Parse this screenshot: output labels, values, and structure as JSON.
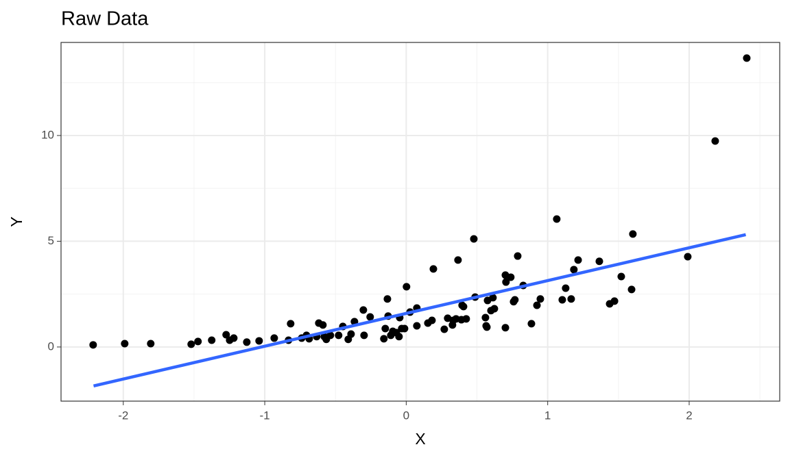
{
  "chart_data": {
    "type": "scatter",
    "title": "Raw Data",
    "x_label": "X",
    "y_label": "Y",
    "color": "#000000",
    "x": [
      -2.213,
      -1.99,
      -1.806,
      -1.52,
      -1.472,
      -1.375,
      -1.273,
      -1.248,
      -1.219,
      -1.127,
      -1.04,
      -0.933,
      -0.832,
      -0.817,
      -0.739,
      -0.705,
      -0.686,
      -0.633,
      -0.618,
      -0.589,
      -0.579,
      -0.565,
      -0.536,
      -0.478,
      -0.448,
      -0.41,
      -0.39,
      -0.366,
      -0.303,
      -0.298,
      -0.255,
      -0.158,
      -0.148,
      -0.133,
      -0.128,
      -0.109,
      -0.095,
      -0.07,
      -0.051,
      -0.046,
      -0.032,
      -0.012,
      0.002,
      0.027,
      0.075,
      0.075,
      0.153,
      0.182,
      0.192,
      0.269,
      0.293,
      0.327,
      0.332,
      0.352,
      0.366,
      0.39,
      0.395,
      0.405,
      0.424,
      0.478,
      0.487,
      0.56,
      0.565,
      0.57,
      0.575,
      0.599,
      0.613,
      0.623,
      0.701,
      0.705,
      0.701,
      0.739,
      0.759,
      0.768,
      0.788,
      0.827,
      0.885,
      0.924,
      0.948,
      1.064,
      1.103,
      1.127,
      1.166,
      1.185,
      1.215,
      1.365,
      1.438,
      1.472,
      1.52,
      1.593,
      1.602,
      1.99,
      2.184,
      2.407
    ],
    "values": [
      0.1,
      0.16,
      0.16,
      0.13,
      0.26,
      0.32,
      0.58,
      0.32,
      0.42,
      0.23,
      0.29,
      0.42,
      0.32,
      1.1,
      0.42,
      0.55,
      0.39,
      0.49,
      1.13,
      1.04,
      0.49,
      0.36,
      0.55,
      0.55,
      0.97,
      0.36,
      0.61,
      1.2,
      1.75,
      0.55,
      1.42,
      0.39,
      0.87,
      2.27,
      1.46,
      0.55,
      0.74,
      0.68,
      0.49,
      1.39,
      0.87,
      0.87,
      2.85,
      1.65,
      1.0,
      1.84,
      1.13,
      1.26,
      3.69,
      0.84,
      1.36,
      1.04,
      1.26,
      1.33,
      4.11,
      1.29,
      1.97,
      1.91,
      1.33,
      5.11,
      2.36,
      1.39,
      1.0,
      0.94,
      2.2,
      1.72,
      2.33,
      1.81,
      3.4,
      3.07,
      0.91,
      3.3,
      2.14,
      2.23,
      4.3,
      2.91,
      1.1,
      1.97,
      2.27,
      6.05,
      2.23,
      2.78,
      2.27,
      3.66,
      4.11,
      4.05,
      2.04,
      2.17,
      3.33,
      2.72,
      5.34,
      4.27,
      9.74,
      13.66
    ],
    "fit": {
      "color": "#3366FF",
      "x": [
        -2.21,
        2.4
      ],
      "y": [
        -1.84,
        5.31
      ]
    },
    "xlim": [
      -2.44,
      2.64
    ],
    "ylim": [
      -2.56,
      14.4
    ],
    "xticks": [
      -2,
      -1,
      0,
      1,
      2
    ],
    "yticks": [
      0,
      5,
      10
    ],
    "x_minor_ticks": [
      -1.5,
      -0.5,
      0.5,
      1.5,
      2.5
    ],
    "y_minor_ticks": [
      2.5,
      7.5,
      12.5
    ],
    "grid": true
  }
}
